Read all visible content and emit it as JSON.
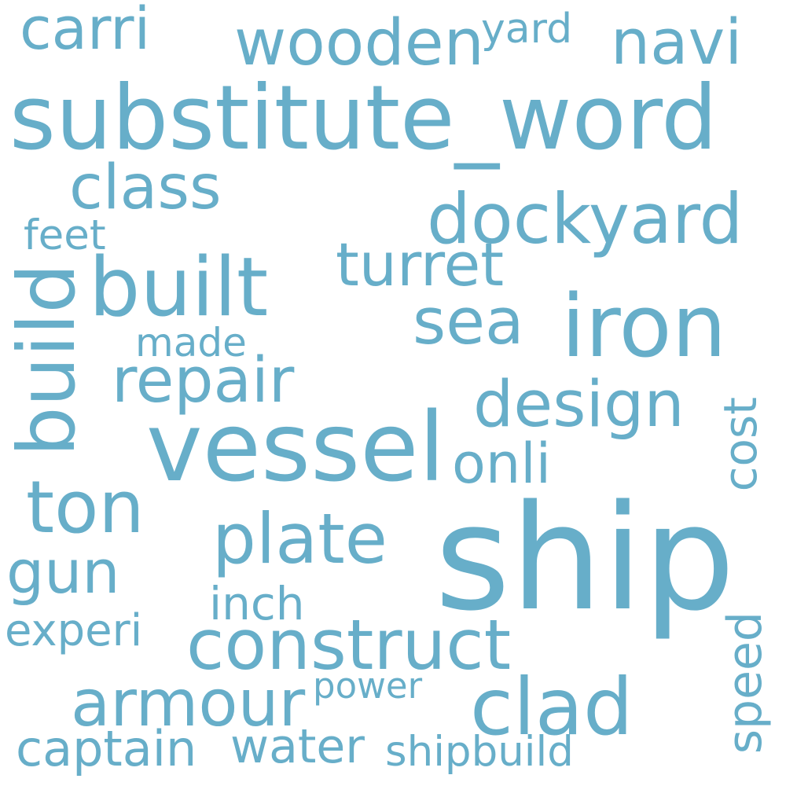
{
  "cloud": {
    "words": {
      "ship": "ship",
      "substitute_word": "substitute_word",
      "vessel": "vessel",
      "build": "build",
      "iron": "iron",
      "built": "built",
      "dockyard": "dockyard",
      "construct": "construct",
      "plate": "plate",
      "ton": "ton",
      "armour": "armour",
      "clad": "clad",
      "design": "design",
      "repair": "repair",
      "wooden": "wooden",
      "navi": "navi",
      "class": "class",
      "turret": "turret",
      "sea": "sea",
      "gun": "gun",
      "carri": "carri",
      "onli": "onli",
      "captain": "captain",
      "water": "water",
      "shipbuild": "shipbuild",
      "experi": "experi",
      "cost": "cost",
      "speed": "speed",
      "inch": "inch",
      "feet": "feet",
      "yard": "yard",
      "made": "made",
      "power": "power"
    },
    "color": "#67aec9",
    "background": "#ffffff"
  }
}
